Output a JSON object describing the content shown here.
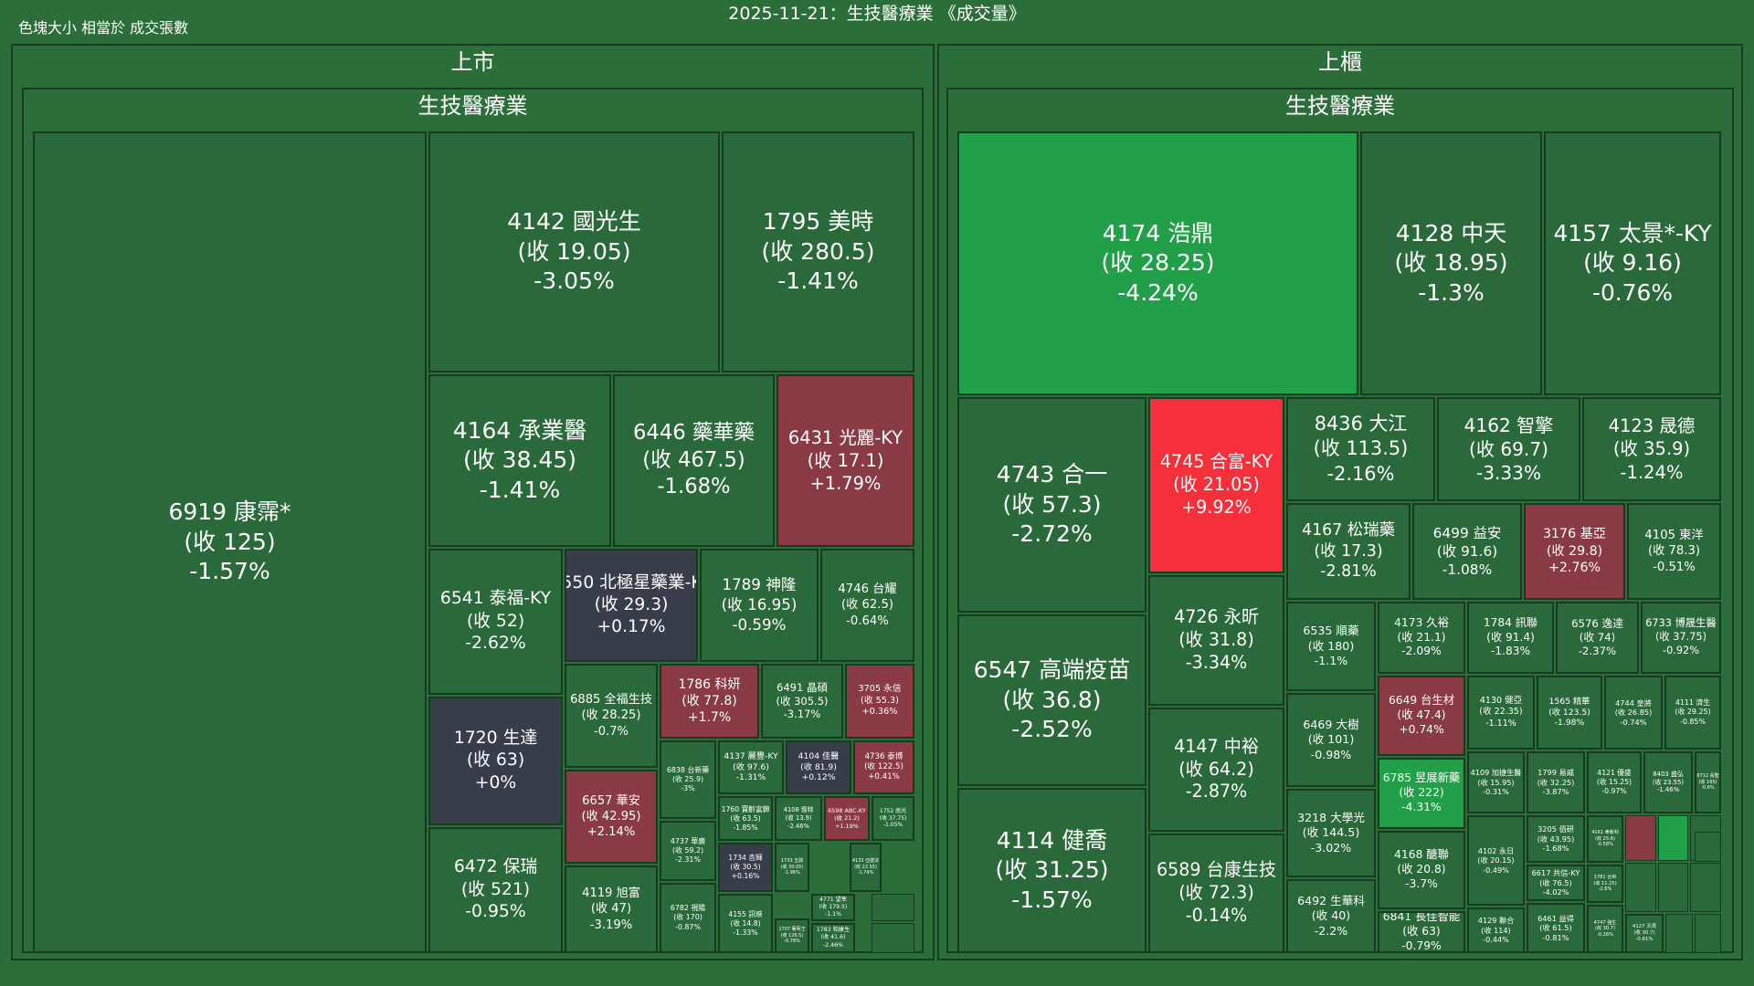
{
  "header": {
    "title": "2025-11-21：生技醫療業 《成交量》",
    "size_note": "色塊大小 相當於 成交張數"
  },
  "colors": {
    "background": "#2c6e3a",
    "border": "#173a20",
    "neutral": "#383d4a",
    "strong_up": "#f5303a",
    "up": "#8a3a44",
    "strong_down": "#22a049",
    "down": "#2a6a3a"
  },
  "chart_data": {
    "type": "treemap",
    "title": "2025-11-21：生技醫療業 《成交量》",
    "size_metric": "色塊大小 相當於 成交張數",
    "markets": [
      {
        "name": "上市",
        "sector": "生技醫療業",
        "stocks": [
          {
            "label": "6919 康霈*",
            "price": "(收 125)",
            "change": "-1.57%"
          },
          {
            "label": "4142 國光生",
            "price": "(收 19.05)",
            "change": "-3.05%"
          },
          {
            "label": "1795 美時",
            "price": "(收 280.5)",
            "change": "-1.41%"
          },
          {
            "label": "4164 承業醫",
            "price": "(收 38.45)",
            "change": "-1.41%"
          },
          {
            "label": "6446 藥華藥",
            "price": "(收 467.5)",
            "change": "-1.68%"
          },
          {
            "label": "6431 光麗-KY",
            "price": "(收 17.1)",
            "change": "+1.79%"
          },
          {
            "label": "6541 泰福-KY",
            "price": "(收 52)",
            "change": "-2.62%"
          },
          {
            "label": "6550 北極星藥業-KY",
            "price": "(收 29.3)",
            "change": "+0.17%"
          },
          {
            "label": "1789 神隆",
            "price": "(收 16.95)",
            "change": "-0.59%"
          },
          {
            "label": "4746 台耀",
            "price": "(收 62.5)",
            "change": "-0.64%"
          },
          {
            "label": "1720 生達",
            "price": "(收 63)",
            "change": "+0%"
          },
          {
            "label": "6885 全福生技",
            "price": "(收 28.25)",
            "change": "-0.7%"
          },
          {
            "label": "1786 科妍",
            "price": "(收 77.8)",
            "change": "+1.7%"
          },
          {
            "label": "6491 晶碩",
            "price": "(收 305.5)",
            "change": "-3.17%"
          },
          {
            "label": "3705 永信",
            "price": "(收 55.3)",
            "change": "+0.36%"
          },
          {
            "label": "6838 台新藥",
            "price": "(收 25.9)",
            "change": "-3%"
          },
          {
            "label": "4137 麗豐-KY",
            "price": "(收 97.6)",
            "change": "-1.31%"
          },
          {
            "label": "4104 佳醫",
            "price": "(收 81.9)",
            "change": "+0.12%"
          },
          {
            "label": "4736 泰博",
            "price": "(收 122.5)",
            "change": "+0.41%"
          },
          {
            "label": "6657 華安",
            "price": "(收 42.95)",
            "change": "+2.14%"
          },
          {
            "label": "1760 寶齡富錦",
            "price": "(收 63.5)",
            "change": "-1.85%"
          },
          {
            "label": "4108 懷特",
            "price": "(收 13.9)",
            "change": "-2.46%"
          },
          {
            "label": "6598 ABC-KY",
            "price": "(收 21.2)",
            "change": "+1.19%"
          },
          {
            "label": "1752 南光",
            "price": "(收 37.75)",
            "change": "-1.05%"
          },
          {
            "label": "4737 華廣",
            "price": "(收 59.2)",
            "change": "-2.31%"
          },
          {
            "label": "6472 保瑞",
            "price": "(收 521)",
            "change": "-0.95%"
          },
          {
            "label": "4119 旭富",
            "price": "(收 47)",
            "change": "-3.19%"
          },
          {
            "label": "1734 杏輝",
            "price": "(收 30.5)",
            "change": "+0.16%"
          },
          {
            "label": "1733 五鼎",
            "price": "(收 30.05)",
            "change": "-1.96%"
          },
          {
            "label": "4133 亞諾法",
            "price": "(收 22.55)",
            "change": "-1.74%"
          },
          {
            "label": "6782 視陽",
            "price": "(收 170)",
            "change": "-0.87%"
          },
          {
            "label": "4771 望隼",
            "price": "(收 179.5)",
            "change": "-1.1%"
          },
          {
            "label": "4155 訊映",
            "price": "(收 14.8)",
            "change": "-1.33%"
          },
          {
            "label": "1707 葡萄王",
            "price": "(收 126.5)",
            "change": "-0.78%"
          },
          {
            "label": "1783 和康生",
            "price": "(收 41.6)",
            "change": "-2.46%"
          }
        ]
      },
      {
        "name": "上櫃",
        "sector": "生技醫療業",
        "stocks": [
          {
            "label": "4174 浩鼎",
            "price": "(收 28.25)",
            "change": "-4.24%"
          },
          {
            "label": "4128 中天",
            "price": "(收 18.95)",
            "change": "-1.3%"
          },
          {
            "label": "4157 太景*-KY",
            "price": "(收 9.16)",
            "change": "-0.76%"
          },
          {
            "label": "4743 合一",
            "price": "(收 57.3)",
            "change": "-2.72%"
          },
          {
            "label": "4745 合富-KY",
            "price": "(收 21.05)",
            "change": "+9.92%"
          },
          {
            "label": "8436 大江",
            "price": "(收 113.5)",
            "change": "-2.16%"
          },
          {
            "label": "4162 智擎",
            "price": "(收 69.7)",
            "change": "-3.33%"
          },
          {
            "label": "4123 晟德",
            "price": "(收 35.9)",
            "change": "-1.24%"
          },
          {
            "label": "4167 松瑞藥",
            "price": "(收 17.3)",
            "change": "-2.81%"
          },
          {
            "label": "6499 益安",
            "price": "(收 91.6)",
            "change": "-1.08%"
          },
          {
            "label": "3176 基亞",
            "price": "(收 29.8)",
            "change": "+2.76%"
          },
          {
            "label": "4105 東洋",
            "price": "(收 78.3)",
            "change": "-0.51%"
          },
          {
            "label": "6547 高端疫苗",
            "price": "(收 36.8)",
            "change": "-2.52%"
          },
          {
            "label": "4726 永昕",
            "price": "(收 31.8)",
            "change": "-3.34%"
          },
          {
            "label": "6535 順藥",
            "price": "(收 180)",
            "change": "-1.1%"
          },
          {
            "label": "4173 久裕",
            "price": "(收 21.1)",
            "change": "-2.09%"
          },
          {
            "label": "1784 訊聯",
            "price": "(收 91.4)",
            "change": "-1.83%"
          },
          {
            "label": "6576 逸達",
            "price": "(收 74)",
            "change": "-2.37%"
          },
          {
            "label": "6733 博晟生醫",
            "price": "(收 37.75)",
            "change": "-0.92%"
          },
          {
            "label": "6469 大樹",
            "price": "(收 101)",
            "change": "-0.98%"
          },
          {
            "label": "6649 台生材",
            "price": "(收 47.4)",
            "change": "+0.74%"
          },
          {
            "label": "4130 健亞",
            "price": "(收 22.35)",
            "change": "-1.11%"
          },
          {
            "label": "1565 精華",
            "price": "(收 123.5)",
            "change": "-1.98%"
          },
          {
            "label": "4744 皇將",
            "price": "(收 26.85)",
            "change": "-0.74%"
          },
          {
            "label": "4111 濟生",
            "price": "(收 29.25)",
            "change": "-0.85%"
          },
          {
            "label": "4147 中裕",
            "price": "(收 64.2)",
            "change": "-2.87%"
          },
          {
            "label": "4114 健喬",
            "price": "(收 31.25)",
            "change": "-1.57%"
          },
          {
            "label": "6785 昱展新藥",
            "price": "(收 222)",
            "change": "-4.31%"
          },
          {
            "label": "4109 加捷生醫",
            "price": "(收 15.95)",
            "change": "-0.31%"
          },
          {
            "label": "1799 易威",
            "price": "(收 32.25)",
            "change": "-3.87%"
          },
          {
            "label": "4121 優盛",
            "price": "(收 15.25)",
            "change": "-0.97%"
          },
          {
            "label": "8403 盛弘",
            "price": "(收 23.55)",
            "change": "-1.46%"
          },
          {
            "label": "6712 長聖",
            "price": "(收 165)",
            "change": "-0.6%"
          },
          {
            "label": "3218 大學光",
            "price": "(收 144.5)",
            "change": "-3.02%"
          },
          {
            "label": "3205 佰研",
            "price": "(收 43.95)",
            "change": "-1.68%"
          },
          {
            "label": "4161 聿新科",
            "price": "(收 25.6)",
            "change": "-0.58%"
          },
          {
            "label": "4168 醣聯",
            "price": "(收 20.8)",
            "change": "-3.7%"
          },
          {
            "label": "4102 永日",
            "price": "(收 20.15)",
            "change": "-0.49%"
          },
          {
            "label": "6617 共信-KY",
            "price": "(收 76.5)",
            "change": "-4.02%"
          },
          {
            "label": "1781 合世",
            "price": "(收 11.25)",
            "change": "-2.6%"
          },
          {
            "label": "6589 台康生技",
            "price": "(收 72.3)",
            "change": "-0.14%"
          },
          {
            "label": "6492 生華科",
            "price": "(收 40)",
            "change": "-2.2%"
          },
          {
            "label": "6841 長佳智能",
            "price": "(收 63)",
            "change": "-0.79%"
          },
          {
            "label": "4129 聯合",
            "price": "(收 114)",
            "change": "-0.44%"
          },
          {
            "label": "6461 益得",
            "price": "(收 61.5)",
            "change": "-0.81%"
          },
          {
            "label": "4747 強生",
            "price": "(收 30.7)",
            "change": "-0.16%"
          },
          {
            "label": "4127 天良",
            "price": "(收 30.7)",
            "change": "-0.81%"
          }
        ]
      }
    ]
  }
}
